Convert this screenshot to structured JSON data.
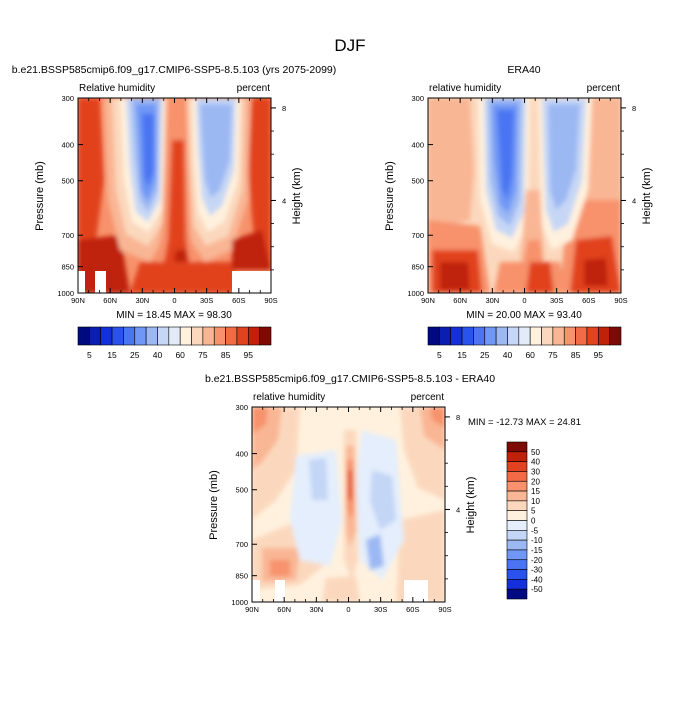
{
  "page": {
    "title": "DJF"
  },
  "chart_data": [
    {
      "type": "heatmap",
      "title": "b.e21.BSSP585cmip6.f09_g17.CMIP6-SSP5-8.5.103 (yrs 2075-2099)",
      "left_string": "Relative humidity",
      "right_string": "percent",
      "ylabel": "Pressure (mb)",
      "ylabel_right": "Height (km)",
      "x_ticks": [
        "90N",
        "60N",
        "30N",
        "0",
        "30S",
        "60S",
        "90S"
      ],
      "y_ticks": [
        "300",
        "400",
        "500",
        "700",
        "850",
        "1000"
      ],
      "y_ticks_right": [
        "8",
        "4"
      ],
      "stats": "MIN =  18.45   MAX =  98.30",
      "xlim": [
        90,
        -90
      ],
      "ylim": [
        1000,
        300
      ],
      "y_scale": "log",
      "colorbar": {
        "orientation": "horizontal",
        "labels": [
          "5",
          "15",
          "25",
          "40",
          "60",
          "75",
          "85",
          "95"
        ],
        "levels": [
          5,
          10,
          15,
          20,
          25,
          30,
          40,
          50,
          60,
          70,
          75,
          80,
          85,
          90,
          95
        ],
        "colors": [
          "#000a80",
          "#0a1fb0",
          "#1430dc",
          "#2a52ec",
          "#4a74f2",
          "#7097f5",
          "#9cb8f3",
          "#c6d7f5",
          "#e2ebf7",
          "#fff1de",
          "#fbd8bd",
          "#f9b694",
          "#f7926c",
          "#f26a46",
          "#e1421f",
          "#bf2209",
          "#7d0a03"
        ]
      }
    },
    {
      "type": "heatmap",
      "title": "ERA40",
      "left_string": "relative humidity",
      "right_string": "percent",
      "ylabel": "Pressure (mb)",
      "ylabel_right": "Height (km)",
      "x_ticks": [
        "90N",
        "60N",
        "30N",
        "0",
        "30S",
        "60S",
        "90S"
      ],
      "y_ticks": [
        "300",
        "400",
        "500",
        "700",
        "850",
        "1000"
      ],
      "y_ticks_right": [
        "8",
        "4"
      ],
      "stats": "MIN =  20.00   MAX =  93.40",
      "xlim": [
        90,
        -90
      ],
      "ylim": [
        1000,
        300
      ],
      "y_scale": "log",
      "colorbar": {
        "orientation": "horizontal",
        "labels": [
          "5",
          "15",
          "25",
          "40",
          "60",
          "75",
          "85",
          "95"
        ],
        "levels": [
          5,
          10,
          15,
          20,
          25,
          30,
          40,
          50,
          60,
          70,
          75,
          80,
          85,
          90,
          95
        ],
        "colors": [
          "#000a80",
          "#0a1fb0",
          "#1430dc",
          "#2a52ec",
          "#4a74f2",
          "#7097f5",
          "#9cb8f3",
          "#c6d7f5",
          "#e2ebf7",
          "#fff1de",
          "#fbd8bd",
          "#f9b694",
          "#f7926c",
          "#f26a46",
          "#e1421f",
          "#bf2209",
          "#7d0a03"
        ]
      }
    },
    {
      "type": "heatmap",
      "title": "b.e21.BSSP585cmip6.f09_g17.CMIP6-SSP5-8.5.103 - ERA40",
      "left_string": "relative humidity",
      "right_string": "percent",
      "ylabel": "Pressure (mb)",
      "ylabel_right": "Height (km)",
      "x_ticks": [
        "90N",
        "60N",
        "30N",
        "0",
        "30S",
        "60S",
        "90S"
      ],
      "y_ticks": [
        "300",
        "400",
        "500",
        "700",
        "850",
        "1000"
      ],
      "y_ticks_right": [
        "8",
        "4"
      ],
      "stats": "MIN = -12.73   MAX =  24.81",
      "xlim": [
        90,
        -90
      ],
      "ylim": [
        1000,
        300
      ],
      "y_scale": "log",
      "colorbar": {
        "orientation": "vertical",
        "labels": [
          "50",
          "40",
          "30",
          "20",
          "15",
          "10",
          "5",
          "0",
          "-5",
          "-10",
          "-15",
          "-20",
          "-30",
          "-40",
          "-50"
        ],
        "levels": [
          50,
          40,
          30,
          20,
          15,
          10,
          5,
          0,
          -5,
          -10,
          -15,
          -20,
          -30,
          -40,
          -50
        ],
        "colors": [
          "#7d0a03",
          "#bf2209",
          "#e1421f",
          "#f26a46",
          "#f7926c",
          "#f9b694",
          "#fbd8bd",
          "#fff1de",
          "#e4eefc",
          "#c3d6f6",
          "#9cb8f3",
          "#7097f5",
          "#4a74f2",
          "#2a52ec",
          "#1430dc",
          "#000a80"
        ]
      }
    }
  ]
}
